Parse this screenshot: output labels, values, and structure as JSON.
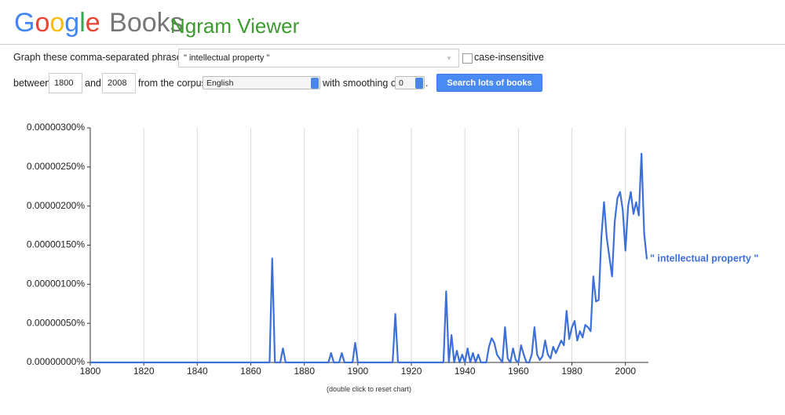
{
  "header": {
    "logo": "Google",
    "brand": "Books",
    "product": "Ngram Viewer"
  },
  "form": {
    "phrases_label": "Graph these comma-separated phrases:",
    "phrases": "\" intellectual property \"",
    "case_label": "case-insensitive",
    "between": "between",
    "start_year": "1800",
    "and": "and",
    "end_year": "2008",
    "corpus_label": "from the corpus",
    "corpus": "English",
    "smoothing_label": "with smoothing of",
    "smoothing": "0",
    "button": "Search lots of books"
  },
  "chart_data": {
    "type": "line",
    "x": [
      1800,
      1866,
      1867,
      1868,
      1869,
      1871,
      1872,
      1873,
      1889,
      1890,
      1891,
      1893,
      1894,
      1895,
      1898,
      1899,
      1900,
      1913,
      1914,
      1915,
      1932,
      1933,
      1934,
      1935,
      1936,
      1937,
      1938,
      1939,
      1940,
      1941,
      1942,
      1943,
      1944,
      1945,
      1946,
      1948,
      1949,
      1950,
      1951,
      1952,
      1953,
      1954,
      1955,
      1956,
      1957,
      1958,
      1959,
      1960,
      1961,
      1962,
      1963,
      1964,
      1965,
      1966,
      1967,
      1968,
      1969,
      1970,
      1971,
      1972,
      1973,
      1974,
      1975,
      1976,
      1977,
      1978,
      1979,
      1980,
      1981,
      1982,
      1983,
      1984,
      1985,
      1986,
      1987,
      1988,
      1989,
      1990,
      1991,
      1992,
      1993,
      1994,
      1995,
      1996,
      1997,
      1998,
      1999,
      2000,
      2001,
      2002,
      2003,
      2004,
      2005,
      2006,
      2007,
      2008
    ],
    "series": [
      {
        "name": "\" intellectual property \"",
        "color": "#3d6fd9",
        "values": [
          0,
          0,
          0,
          1.33e-06,
          0,
          0,
          1.8e-07,
          0,
          0,
          1.2e-07,
          0,
          0,
          1.2e-07,
          0,
          0,
          2.5e-07,
          0,
          0,
          6.2e-07,
          0,
          0,
          9.1e-07,
          0,
          3.5e-07,
          0,
          1.5e-07,
          0,
          1e-07,
          0,
          1.8e-07,
          0,
          1.2e-07,
          0,
          1e-07,
          0,
          0,
          2e-07,
          3.1e-07,
          2.5e-07,
          1e-07,
          5e-08,
          0,
          4.5e-07,
          5e-08,
          0,
          1.8e-07,
          3e-08,
          0,
          2.2e-07,
          1e-07,
          0,
          0,
          1e-07,
          4.5e-07,
          1e-07,
          3e-08,
          8e-08,
          2.8e-07,
          1e-07,
          5e-08,
          2e-07,
          1.2e-07,
          2e-07,
          2.8e-07,
          2.2e-07,
          6.6e-07,
          3e-07,
          4.5e-07,
          5.3e-07,
          2.8e-07,
          4e-07,
          3.2e-07,
          4.8e-07,
          4.5e-07,
          4e-07,
          1.1e-06,
          7.8e-07,
          8e-07,
          1.6e-06,
          2.05e-06,
          1.6e-06,
          1.35e-06,
          1.1e-06,
          1.8e-06,
          2.1e-06,
          2.18e-06,
          1.95e-06,
          1.43e-06,
          2e-06,
          2.18e-06,
          1.9e-06,
          2.05e-06,
          1.88e-06,
          2.67e-06,
          1.65e-06,
          1.32e-06
        ]
      }
    ],
    "xlim": [
      1800,
      2008
    ],
    "xticks": [
      1800,
      1820,
      1840,
      1860,
      1880,
      1900,
      1920,
      1940,
      1960,
      1980,
      2000
    ],
    "ylim": [
      0,
      3e-06
    ],
    "yticks": [
      {
        "value": 0,
        "label": "0.00000000%"
      },
      {
        "value": 5e-07,
        "label": "0.00000050%"
      },
      {
        "value": 1e-06,
        "label": "0.00000100%"
      },
      {
        "value": 1.5e-06,
        "label": "0.00000150%"
      },
      {
        "value": 2e-06,
        "label": "0.00000200%"
      },
      {
        "value": 2.5e-06,
        "label": "0.00000250%"
      },
      {
        "value": 3e-06,
        "label": "0.00000300%"
      }
    ],
    "grid": true,
    "footnote": "(double click to reset chart)"
  }
}
